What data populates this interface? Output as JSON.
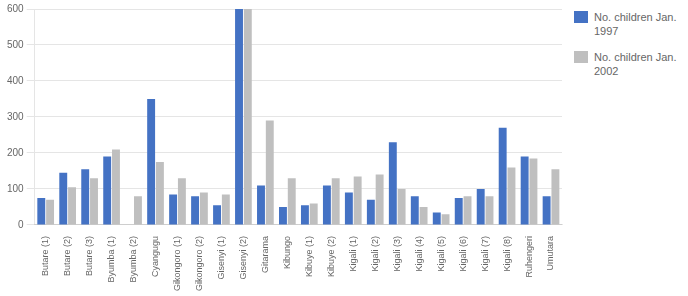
{
  "chart_data": {
    "type": "bar",
    "categories": [
      "Butare (1)",
      "Butare (2)",
      "Butare (3)",
      "Byumba (1)",
      "Byumba (2)",
      "Cyangugu",
      "Gikongoro (1)",
      "Gikongoro (2)",
      "Gisenyi (1)",
      "Gisenyi (2)",
      "Gitarama",
      "Kibungo",
      "Kibuye (1)",
      "Kibuye (2)",
      "Kigali (1)",
      "Kigali (2)",
      "Kigali (3)",
      "Kigali (4)",
      "Kigali (5)",
      "Kigali (6)",
      "Kigali (7)",
      "Kigali (8)",
      "Ruhengeri",
      "Umutara"
    ],
    "series": [
      {
        "name": "No. children Jan.\n1997",
        "color": "#4472C4",
        "values": [
          75,
          145,
          155,
          190,
          0,
          350,
          85,
          80,
          55,
          600,
          110,
          50,
          55,
          110,
          90,
          70,
          230,
          80,
          35,
          75,
          100,
          270,
          190,
          80
        ]
      },
      {
        "name": "No. children Jan.\n2002",
        "color": "#BFBFBF",
        "values": [
          70,
          105,
          130,
          210,
          80,
          175,
          130,
          90,
          85,
          600,
          290,
          130,
          60,
          130,
          135,
          140,
          100,
          50,
          30,
          80,
          80,
          160,
          185,
          155
        ]
      }
    ],
    "ylim": [
      0,
      600
    ],
    "yticks": [
      0,
      100,
      200,
      300,
      400,
      500,
      600
    ],
    "grid": true,
    "legend": "right"
  }
}
